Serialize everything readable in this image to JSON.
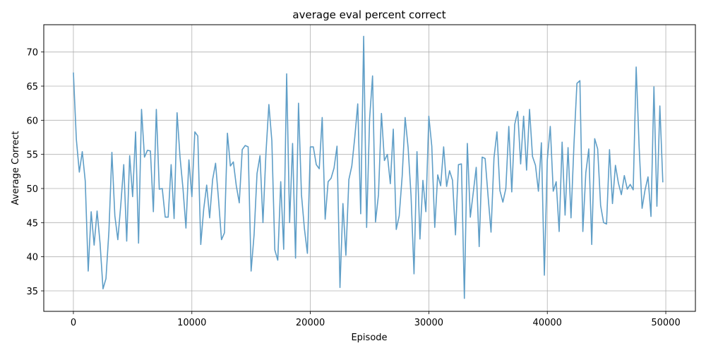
{
  "chart_data": {
    "type": "line",
    "title": "average eval percent correct",
    "xlabel": "Episode",
    "ylabel": "Average Correct",
    "xlim": [
      -2500,
      52500
    ],
    "ylim": [
      32,
      74
    ],
    "xticks": [
      0,
      10000,
      20000,
      30000,
      40000,
      50000
    ],
    "xtick_labels": [
      "0",
      "10000",
      "20000",
      "30000",
      "40000",
      "50000"
    ],
    "yticks": [
      35,
      40,
      45,
      50,
      55,
      60,
      65,
      70
    ],
    "ytick_labels": [
      "35",
      "40",
      "45",
      "50",
      "55",
      "60",
      "65",
      "70"
    ],
    "grid": true,
    "line_color": "#5f9ec7",
    "series": [
      {
        "x": [
          0,
          250,
          500,
          750,
          1000,
          1250,
          1500,
          1750,
          2000,
          2250,
          2500,
          2750,
          3000,
          3250,
          3500,
          3750,
          4000,
          4250,
          4500,
          4750,
          5000,
          5250,
          5500,
          5750,
          6000,
          6250,
          6500,
          6750,
          7000,
          7250,
          7500,
          7750,
          8000,
          8250,
          8500,
          8750,
          9000,
          9250,
          9500,
          9750,
          10000,
          10250,
          10500,
          10750,
          11000,
          11250,
          11500,
          11750,
          12000,
          12250,
          12500,
          12750,
          13000,
          13250,
          13500,
          13750,
          14000,
          14250,
          14500,
          14750,
          15000,
          15250,
          15500,
          15750,
          16000,
          16250,
          16500,
          16750,
          17000,
          17250,
          17500,
          17750,
          18000,
          18250,
          18500,
          18750,
          19000,
          19250,
          19500,
          19750,
          20000,
          20250,
          20500,
          20750,
          21000,
          21250,
          21500,
          21750,
          22000,
          22250,
          22500,
          22750,
          23000,
          23250,
          23500,
          23750,
          24000,
          24250,
          24500,
          24750,
          25000,
          25250,
          25500,
          25750,
          26000,
          26250,
          26500,
          26750,
          27000,
          27250,
          27500,
          27750,
          28000,
          28250,
          28500,
          28750,
          29000,
          29250,
          29500,
          29750,
          30000,
          30250,
          30500,
          30750,
          31000,
          31250,
          31500,
          31750,
          32000,
          32250,
          32500,
          32750,
          33000,
          33250,
          33500,
          33750,
          34000,
          34250,
          34500,
          34750,
          35000,
          35250,
          35500,
          35750,
          36000,
          36250,
          36500,
          36750,
          37000,
          37250,
          37500,
          37750,
          38000,
          38250,
          38500,
          38750,
          39000,
          39250,
          39500,
          39750,
          40000,
          40250,
          40500,
          40750,
          41000,
          41250,
          41500,
          41750,
          42000,
          42250,
          42500,
          42750,
          43000,
          43250,
          43500,
          43750,
          44000,
          44250,
          44500,
          44750,
          45000,
          45250,
          45500,
          45750,
          46000,
          46250,
          46500,
          46750,
          47000,
          47250,
          47500,
          47750,
          48000,
          48250,
          48500,
          48750,
          49000,
          49250,
          49500,
          49750
        ],
        "y": [
          67.0,
          57.2,
          52.4,
          55.4,
          51.1,
          37.9,
          46.6,
          41.7,
          46.7,
          42.0,
          35.3,
          36.8,
          43.8,
          55.3,
          46.0,
          42.5,
          47.6,
          53.5,
          42.3,
          54.8,
          48.8,
          58.3,
          42.0,
          61.6,
          54.6,
          55.6,
          55.5,
          46.6,
          61.6,
          49.9,
          50.0,
          45.8,
          45.8,
          53.5,
          45.6,
          61.1,
          54.6,
          50.0,
          44.2,
          54.2,
          48.8,
          58.3,
          57.7,
          41.8,
          47.0,
          50.5,
          45.7,
          51.3,
          53.7,
          48.4,
          42.5,
          43.5,
          58.1,
          53.3,
          53.9,
          50.4,
          47.9,
          55.7,
          56.3,
          56.1,
          37.9,
          43.2,
          52.2,
          54.8,
          45.0,
          55.1,
          62.3,
          57.0,
          41.0,
          39.5,
          51.0,
          41.1,
          66.8,
          45.0,
          56.6,
          39.8,
          62.5,
          49.1,
          44.1,
          40.5,
          56.1,
          56.1,
          53.5,
          52.9,
          60.4,
          45.5,
          51.0,
          51.5,
          53.0,
          56.2,
          35.5,
          47.8,
          40.2,
          51.3,
          53.3,
          57.5,
          62.4,
          46.3,
          72.3,
          44.3,
          60.2,
          66.5,
          45.1,
          49.1,
          61.0,
          54.1,
          55.0,
          50.7,
          58.7,
          44.0,
          46.0,
          51.8,
          60.4,
          56.0,
          48.9,
          37.5,
          55.4,
          42.6,
          51.2,
          46.6,
          60.6,
          56.2,
          44.3,
          52.0,
          50.4,
          56.1,
          50.3,
          52.6,
          51.2,
          43.2,
          53.5,
          53.6,
          33.9,
          56.6,
          45.8,
          49.4,
          53.1,
          41.5,
          54.6,
          54.4,
          48.9,
          43.6,
          54.5,
          58.3,
          49.7,
          48.0,
          50.0,
          59.1,
          49.5,
          59.4,
          61.3,
          53.6,
          60.6,
          52.7,
          61.6,
          54.7,
          53.4,
          49.6,
          56.7,
          37.3,
          54.2,
          59.1,
          49.6,
          51.0,
          43.7,
          56.8,
          46.1,
          56.0,
          45.7,
          56.5,
          65.4,
          65.8,
          43.7,
          52.3,
          55.8,
          41.8,
          57.3,
          55.8,
          47.5,
          45.0,
          44.8,
          55.7,
          47.8,
          53.4,
          50.8,
          49.1,
          51.9,
          49.9,
          50.6,
          49.8,
          67.8,
          56.1,
          47.1,
          49.8,
          51.7,
          45.9,
          64.9,
          47.4,
          62.1,
          50.9
        ]
      }
    ]
  }
}
